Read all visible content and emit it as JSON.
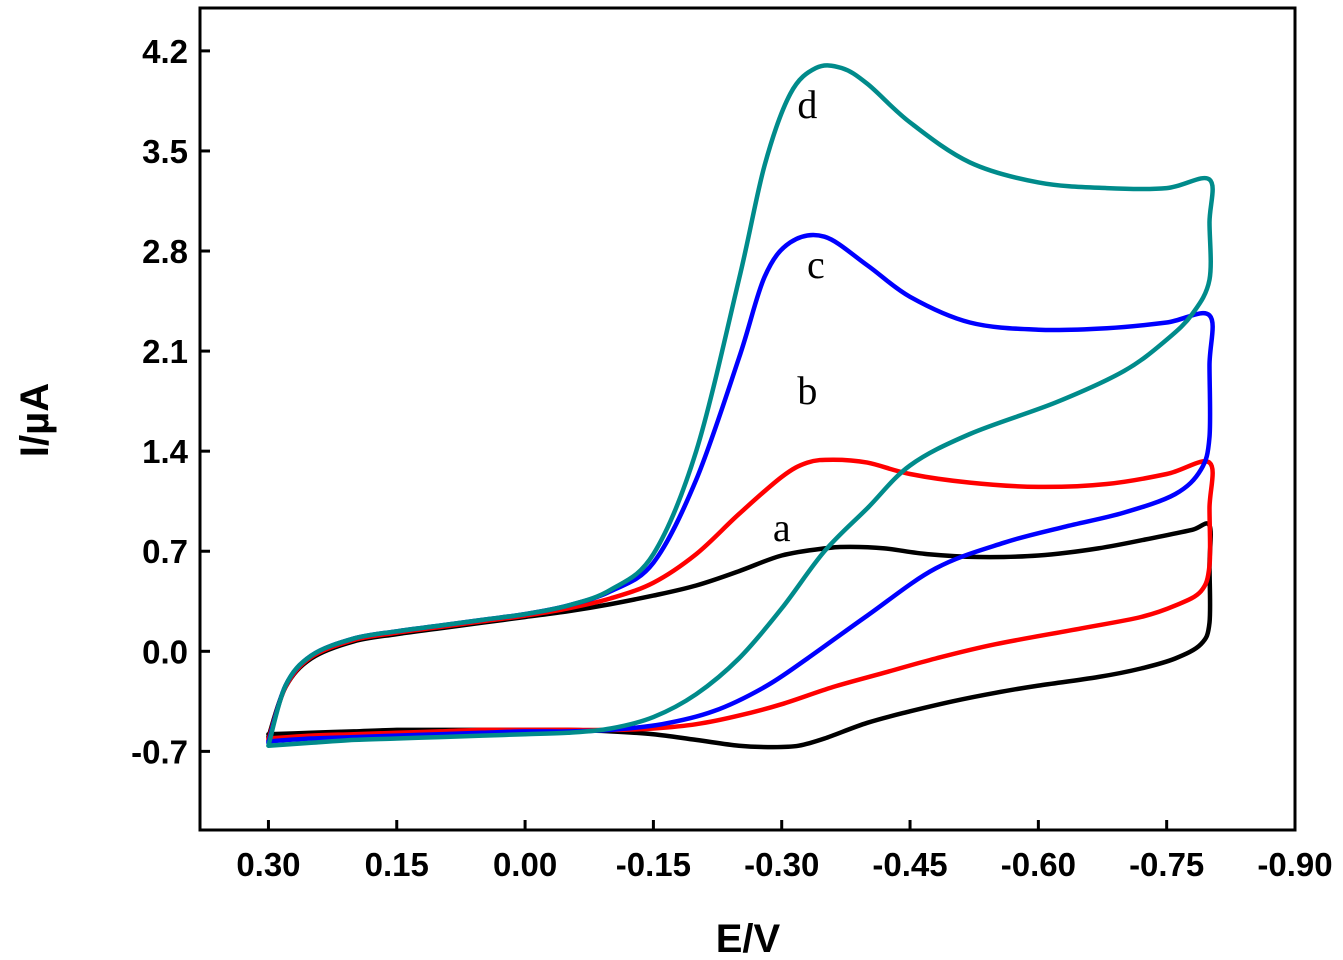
{
  "chart_data": {
    "type": "line",
    "title": "",
    "xlabel": "E/V",
    "ylabel": "I/µA",
    "xlim": [
      0.38,
      -0.9
    ],
    "ylim": [
      -1.25,
      4.5
    ],
    "x_ticks": [
      "0.30",
      "0.15",
      "0.00",
      "-0.15",
      "-0.30",
      "-0.45",
      "-0.60",
      "-0.75",
      "-0.90"
    ],
    "y_ticks": [
      "4.2",
      "3.5",
      "2.8",
      "2.1",
      "1.4",
      "0.7",
      "0.0",
      "-0.7"
    ],
    "grid": false,
    "series": [
      {
        "name": "a",
        "color": "#000000",
        "label_at": [
          -0.3,
          0.77
        ],
        "x": [
          0.3,
          0.28,
          0.25,
          0.2,
          0.15,
          0.1,
          0.05,
          0.0,
          -0.05,
          -0.1,
          -0.15,
          -0.2,
          -0.25,
          -0.3,
          -0.35,
          -0.38,
          -0.42,
          -0.47,
          -0.53,
          -0.6,
          -0.67,
          -0.74,
          -0.78,
          -0.8,
          -0.8,
          -0.8,
          -0.79,
          -0.76,
          -0.72,
          -0.67,
          -0.6,
          -0.55,
          -0.5,
          -0.45,
          -0.4,
          -0.35,
          -0.32,
          -0.29,
          -0.25,
          -0.2,
          -0.15,
          -0.1,
          -0.05,
          0.0,
          0.05,
          0.1,
          0.15,
          0.2,
          0.25,
          0.3
        ],
        "y": [
          -0.6,
          -0.25,
          -0.05,
          0.07,
          0.12,
          0.16,
          0.2,
          0.24,
          0.28,
          0.33,
          0.39,
          0.46,
          0.56,
          0.67,
          0.72,
          0.73,
          0.72,
          0.68,
          0.66,
          0.67,
          0.72,
          0.8,
          0.85,
          0.88,
          0.6,
          0.2,
          0.05,
          -0.05,
          -0.12,
          -0.18,
          -0.24,
          -0.29,
          -0.35,
          -0.42,
          -0.5,
          -0.61,
          -0.66,
          -0.67,
          -0.66,
          -0.62,
          -0.58,
          -0.56,
          -0.55,
          -0.55,
          -0.55,
          -0.55,
          -0.55,
          -0.56,
          -0.57,
          -0.58
        ]
      },
      {
        "name": "b",
        "color": "#ff0000",
        "label_at": [
          -0.33,
          1.73
        ],
        "x": [
          0.3,
          0.28,
          0.25,
          0.2,
          0.15,
          0.1,
          0.05,
          0.0,
          -0.05,
          -0.1,
          -0.15,
          -0.2,
          -0.25,
          -0.3,
          -0.33,
          -0.36,
          -0.4,
          -0.45,
          -0.52,
          -0.6,
          -0.68,
          -0.75,
          -0.8,
          -0.8,
          -0.8,
          -0.79,
          -0.76,
          -0.72,
          -0.65,
          -0.55,
          -0.48,
          -0.42,
          -0.36,
          -0.3,
          -0.25,
          -0.2,
          -0.15,
          -0.1,
          -0.05,
          0.0,
          0.05,
          0.1,
          0.15,
          0.2,
          0.25,
          0.3
        ],
        "y": [
          -0.62,
          -0.25,
          -0.04,
          0.08,
          0.13,
          0.17,
          0.21,
          0.25,
          0.3,
          0.37,
          0.48,
          0.68,
          0.96,
          1.22,
          1.32,
          1.34,
          1.32,
          1.24,
          1.18,
          1.15,
          1.17,
          1.24,
          1.32,
          1.0,
          0.6,
          0.42,
          0.32,
          0.24,
          0.16,
          0.05,
          -0.05,
          -0.15,
          -0.25,
          -0.37,
          -0.45,
          -0.51,
          -0.54,
          -0.55,
          -0.55,
          -0.55,
          -0.55,
          -0.56,
          -0.57,
          -0.58,
          -0.59,
          -0.61
        ]
      },
      {
        "name": "c",
        "color": "#0000ff",
        "label_at": [
          -0.34,
          2.61
        ],
        "x": [
          0.3,
          0.28,
          0.25,
          0.2,
          0.15,
          0.1,
          0.05,
          0.0,
          -0.05,
          -0.1,
          -0.15,
          -0.2,
          -0.25,
          -0.28,
          -0.31,
          -0.35,
          -0.4,
          -0.45,
          -0.52,
          -0.6,
          -0.68,
          -0.75,
          -0.8,
          -0.8,
          -0.8,
          -0.79,
          -0.76,
          -0.7,
          -0.63,
          -0.56,
          -0.48,
          -0.4,
          -0.33,
          -0.28,
          -0.22,
          -0.16,
          -0.1,
          -0.05,
          0.0,
          0.05,
          0.1,
          0.15,
          0.2,
          0.25,
          0.3
        ],
        "y": [
          -0.64,
          -0.24,
          -0.03,
          0.09,
          0.14,
          0.18,
          0.22,
          0.26,
          0.32,
          0.42,
          0.62,
          1.2,
          2.05,
          2.62,
          2.86,
          2.9,
          2.7,
          2.48,
          2.3,
          2.25,
          2.26,
          2.3,
          2.35,
          2.0,
          1.5,
          1.27,
          1.1,
          0.97,
          0.87,
          0.76,
          0.58,
          0.25,
          -0.05,
          -0.25,
          -0.42,
          -0.51,
          -0.55,
          -0.56,
          -0.56,
          -0.57,
          -0.58,
          -0.59,
          -0.6,
          -0.61,
          -0.63
        ]
      },
      {
        "name": "d",
        "color": "#008b8b",
        "label_at": [
          -0.33,
          3.73
        ],
        "x": [
          0.3,
          0.28,
          0.25,
          0.2,
          0.15,
          0.1,
          0.05,
          0.0,
          -0.05,
          -0.1,
          -0.15,
          -0.2,
          -0.25,
          -0.28,
          -0.31,
          -0.34,
          -0.37,
          -0.4,
          -0.45,
          -0.52,
          -0.6,
          -0.68,
          -0.75,
          -0.8,
          -0.8,
          -0.8,
          -0.78,
          -0.75,
          -0.7,
          -0.62,
          -0.52,
          -0.45,
          -0.4,
          -0.35,
          -0.3,
          -0.25,
          -0.2,
          -0.15,
          -0.1,
          -0.05,
          0.0,
          0.05,
          0.1,
          0.15,
          0.2,
          0.25,
          0.3
        ],
        "y": [
          -0.66,
          -0.24,
          -0.03,
          0.09,
          0.14,
          0.18,
          0.22,
          0.26,
          0.32,
          0.43,
          0.68,
          1.4,
          2.6,
          3.4,
          3.9,
          4.08,
          4.08,
          3.97,
          3.7,
          3.42,
          3.28,
          3.24,
          3.24,
          3.3,
          3.0,
          2.6,
          2.36,
          2.18,
          1.96,
          1.74,
          1.52,
          1.3,
          1.0,
          0.7,
          0.3,
          -0.05,
          -0.3,
          -0.46,
          -0.54,
          -0.57,
          -0.58,
          -0.59,
          -0.6,
          -0.61,
          -0.62,
          -0.64,
          -0.66
        ]
      }
    ]
  }
}
